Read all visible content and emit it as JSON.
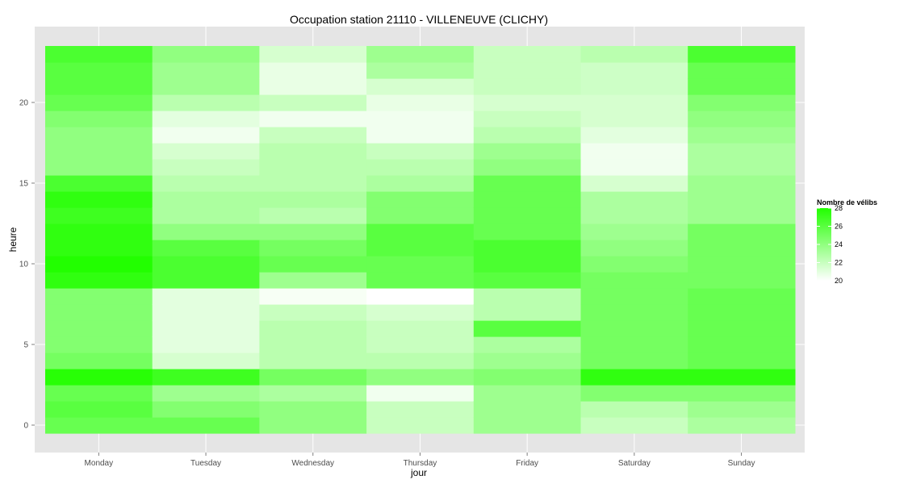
{
  "chart_data": {
    "type": "heatmap",
    "title": "Occupation station 21110 - VILLENEUVE (CLICHY)",
    "xlabel": "jour",
    "ylabel": "heure",
    "x_categories": [
      "Monday",
      "Tuesday",
      "Wednesday",
      "Thursday",
      "Friday",
      "Saturday",
      "Sunday"
    ],
    "y_range": [
      -0.5,
      23.5
    ],
    "y_ticks": [
      0,
      5,
      10,
      15,
      20
    ],
    "hours": [
      0,
      1,
      2,
      3,
      4,
      5,
      6,
      7,
      8,
      9,
      10,
      11,
      12,
      13,
      14,
      15,
      16,
      17,
      18,
      19,
      20,
      21,
      22,
      23
    ],
    "values": [
      [
        25.5,
        26.0,
        25.5,
        27.8,
        25.0,
        24.5,
        24.5,
        24.5,
        24.5,
        27.5,
        28.0,
        27.5,
        27.5,
        27.0,
        27.5,
        26.5,
        24.0,
        24.0,
        24.0,
        24.5,
        25.5,
        26.0,
        26.0,
        26.5
      ],
      [
        25.5,
        24.5,
        23.5,
        27.0,
        21.5,
        21.0,
        21.0,
        21.0,
        21.0,
        26.5,
        26.5,
        26.0,
        24.0,
        23.0,
        23.0,
        22.5,
        22.0,
        21.5,
        20.5,
        21.0,
        22.5,
        23.5,
        23.5,
        24.0
      ],
      [
        24.0,
        24.0,
        23.0,
        25.0,
        22.5,
        22.5,
        22.5,
        22.0,
        20.3,
        23.5,
        25.5,
        25.0,
        24.0,
        22.5,
        23.0,
        22.5,
        22.5,
        22.5,
        22.0,
        20.5,
        22.0,
        20.8,
        20.8,
        21.5
      ],
      [
        22.0,
        22.0,
        20.5,
        24.0,
        22.5,
        22.0,
        22.0,
        21.5,
        20.0,
        25.5,
        25.5,
        26.0,
        26.0,
        24.5,
        24.5,
        23.0,
        22.5,
        22.0,
        20.5,
        20.5,
        20.8,
        21.5,
        23.0,
        23.5
      ],
      [
        23.5,
        23.5,
        23.5,
        24.5,
        23.5,
        23.0,
        26.0,
        22.5,
        22.5,
        26.0,
        26.5,
        26.5,
        25.5,
        25.5,
        25.5,
        25.5,
        24.0,
        23.5,
        22.5,
        22.0,
        21.5,
        22.0,
        22.0,
        22.0
      ],
      [
        22.0,
        22.5,
        24.5,
        27.5,
        25.0,
        25.0,
        25.0,
        25.0,
        25.0,
        25.0,
        24.5,
        24.0,
        23.5,
        23.0,
        23.0,
        21.5,
        20.5,
        20.5,
        21.0,
        21.5,
        21.5,
        21.8,
        21.8,
        22.5
      ],
      [
        23.0,
        23.5,
        24.5,
        27.5,
        25.5,
        25.5,
        25.5,
        25.5,
        25.5,
        25.0,
        25.0,
        25.0,
        25.0,
        23.5,
        23.5,
        23.5,
        23.0,
        23.0,
        23.5,
        24.0,
        24.5,
        25.5,
        25.5,
        26.5
      ]
    ],
    "color_scale": {
      "min": 20,
      "max": 28,
      "low_color": "#ffffff",
      "high_color": "#22ff00"
    },
    "legend": {
      "title": "Nombre de vélibs",
      "breaks": [
        28,
        26,
        24,
        22,
        20
      ],
      "placement": "right"
    },
    "grid": true,
    "panel_background": "#e5e5e5",
    "grid_color": "#ffffff"
  }
}
